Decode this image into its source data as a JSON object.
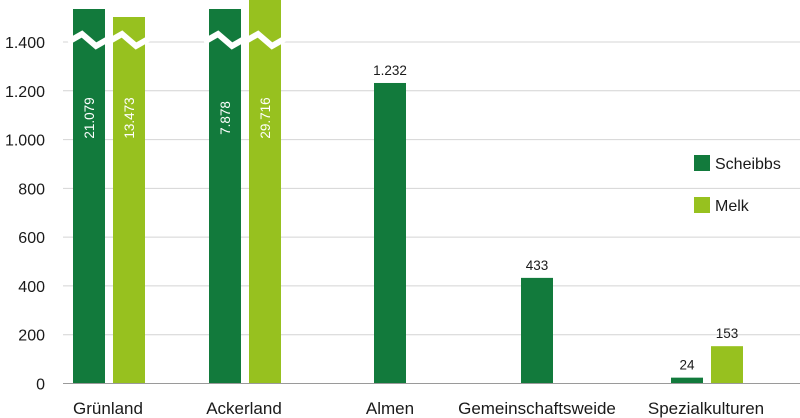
{
  "chart_data": {
    "type": "bar",
    "title": "",
    "xlabel": "",
    "ylabel": "",
    "ylim": [
      0,
      1500
    ],
    "yticks": [
      0,
      200,
      400,
      600,
      800,
      1000,
      1200,
      1400
    ],
    "ytick_labels": [
      "0",
      "200",
      "400",
      "600",
      "800",
      "1.000",
      "1.200",
      "1.400"
    ],
    "grid": "horizontal",
    "legend_position": "right",
    "axis_break": true,
    "categories": [
      "Grünland",
      "Ackerland",
      "Almen",
      "Gemeinschaftsweide",
      "Spezialkulturen"
    ],
    "series": [
      {
        "name": "Scheibbs",
        "color": "#127a3c",
        "values": [
          21079,
          7878,
          1232,
          433,
          24
        ],
        "labels": [
          "21.079",
          "7.878",
          "1.232",
          "433",
          "24"
        ]
      },
      {
        "name": "Melk",
        "color": "#97c11f",
        "values": [
          13473,
          29716,
          null,
          null,
          153
        ],
        "labels": [
          "13.473",
          "29.716",
          "",
          "",
          "153"
        ]
      }
    ]
  }
}
